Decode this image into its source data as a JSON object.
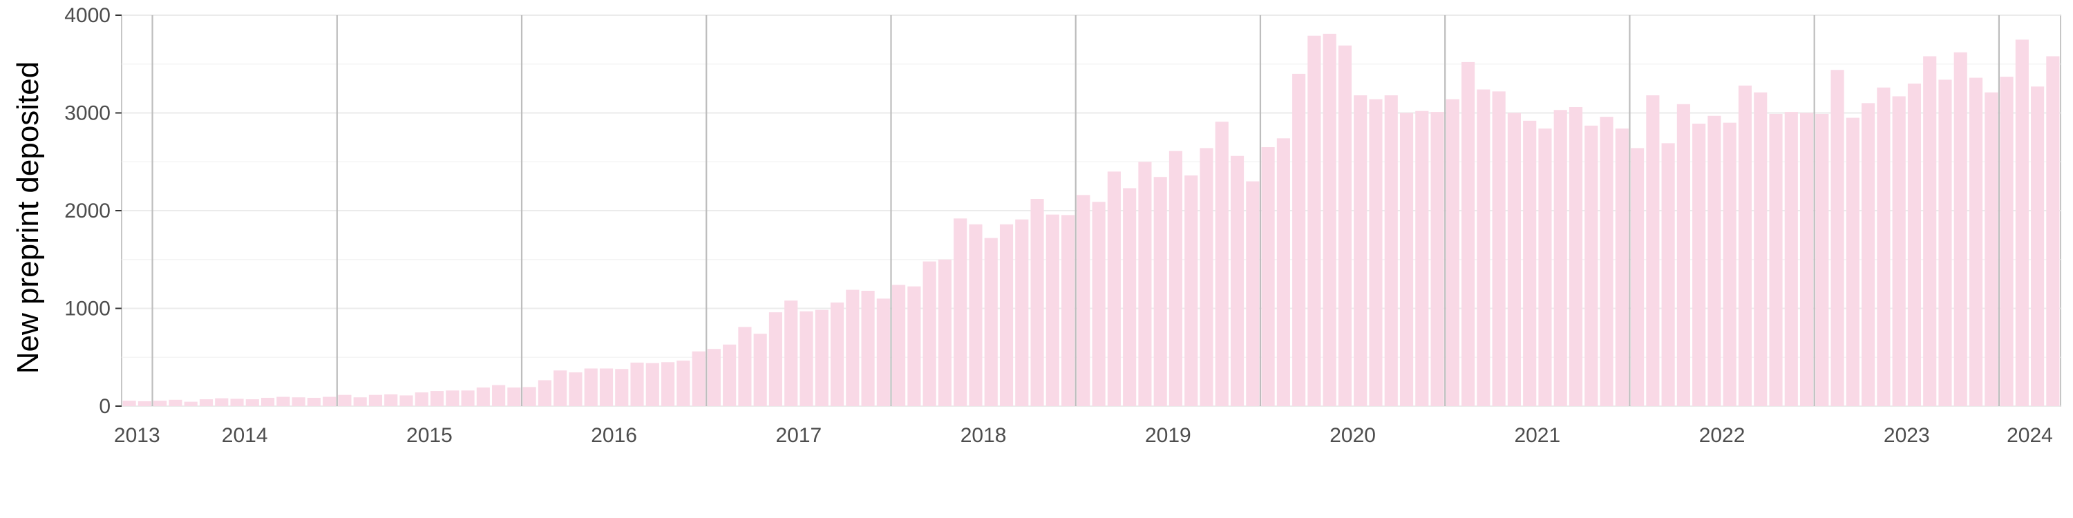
{
  "chart_data": {
    "type": "bar",
    "ylabel": "New preprint deposited",
    "xlabel": "",
    "ylim": [
      0,
      4000
    ],
    "y_ticks": [
      0,
      1000,
      2000,
      3000,
      4000
    ],
    "x_tick_labels": [
      "2013",
      "2014",
      "2015",
      "2016",
      "2017",
      "2018",
      "2019",
      "2020",
      "2021",
      "2022",
      "2023",
      "2024"
    ],
    "grid": true,
    "bar_color": "#f9d9e6",
    "start_month": "2013-11",
    "values": [
      55,
      50,
      55,
      65,
      45,
      70,
      80,
      75,
      70,
      85,
      95,
      90,
      85,
      95,
      115,
      90,
      115,
      120,
      110,
      140,
      155,
      160,
      160,
      190,
      215,
      190,
      195,
      265,
      365,
      345,
      385,
      385,
      380,
      445,
      440,
      450,
      465,
      560,
      585,
      630,
      810,
      740,
      960,
      1080,
      970,
      985,
      1060,
      1190,
      1180,
      1100,
      1240,
      1225,
      1480,
      1500,
      1920,
      1860,
      1720,
      1860,
      1910,
      2120,
      1960,
      1955,
      2160,
      2090,
      2400,
      2230,
      2500,
      2345,
      2610,
      2360,
      2640,
      2910,
      2560,
      2300,
      2650,
      2740,
      3400,
      3790,
      3810,
      3690,
      3180,
      3140,
      3180,
      3000,
      3020,
      3010,
      3140,
      3520,
      3240,
      3220,
      3000,
      2920,
      2840,
      3030,
      3060,
      2870,
      2960,
      2840,
      2640,
      3180,
      2690,
      3090,
      2890,
      2970,
      2900,
      3280,
      3210,
      2990,
      3010,
      3000,
      2990,
      3440,
      2950,
      3100,
      3260,
      3170,
      3300,
      3580,
      3340,
      3620,
      3360,
      3210,
      3370,
      3750,
      3270,
      3580
    ]
  }
}
